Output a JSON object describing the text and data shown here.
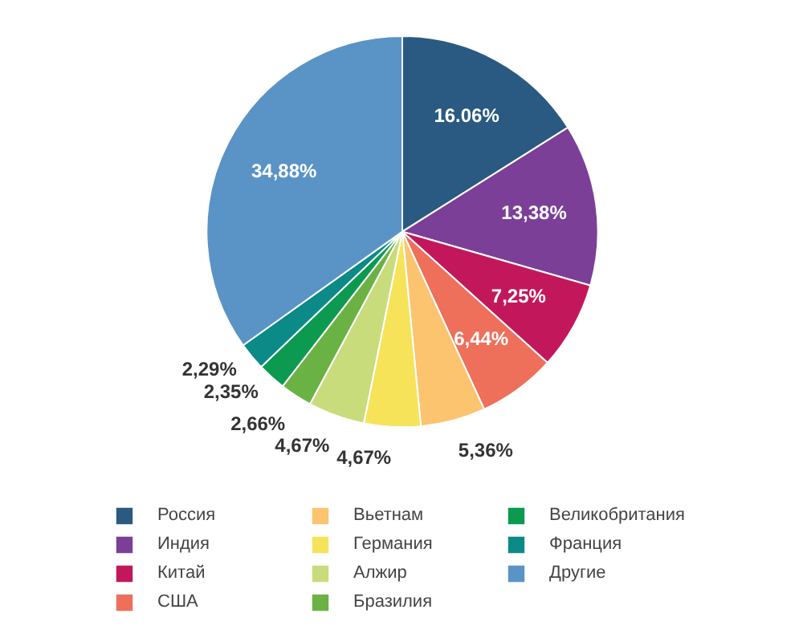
{
  "chart_data": {
    "type": "pie",
    "categories": [
      "Россия",
      "Индия",
      "Китай",
      "США",
      "Вьетнам",
      "Германия",
      "Алжир",
      "Бразилия",
      "Великобритания",
      "Франция",
      "Другие"
    ],
    "values": [
      16.06,
      13.38,
      7.25,
      6.44,
      5.36,
      4.67,
      4.67,
      2.66,
      2.35,
      2.29,
      34.88
    ],
    "value_labels": [
      "16.06%",
      "13,38%",
      "7,25%",
      "6,44%",
      "5,36%",
      "4,67%",
      "4,67%",
      "2,66%",
      "2,35%",
      "2,29%",
      "34,88%"
    ],
    "colors": [
      "#2a5a82",
      "#7b3f98",
      "#c2185b",
      "#ee6f5a",
      "#fcc46e",
      "#f6e35a",
      "#c8dc7c",
      "#6ab244",
      "#0b9a4f",
      "#0b8a88",
      "#5a93c6"
    ],
    "legend": "bottom"
  }
}
